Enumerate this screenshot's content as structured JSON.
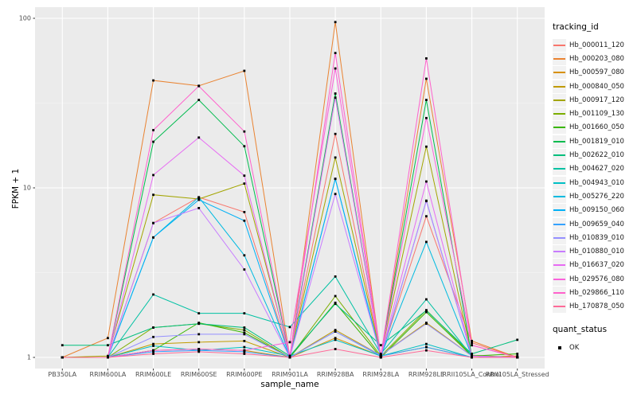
{
  "chart_data": {
    "type": "line",
    "title": "",
    "xlabel": "sample_name",
    "ylabel": "FPKM + 1",
    "x_scale": "discrete",
    "y_scale": "log10",
    "ylim": [
      1,
      100
    ],
    "y_ticks": [
      100,
      10,
      1
    ],
    "grid": "on",
    "legend_position": "right",
    "categories": [
      "PB350LA",
      "RRIM600LA",
      "RRIM600LE",
      "RRIM600SE",
      "RRIM600PE",
      "RRIM901LA",
      "RRIM928BA",
      "RRIM928LA",
      "RRIM928LE",
      "RRII105LA_Control",
      "RRII105LA_Stressed"
    ],
    "series": [
      {
        "name": "Hb_000011_120",
        "color": "#F8766D",
        "values": [
          1.0,
          1.0,
          6.2,
          8.8,
          7.2,
          1.02,
          20.8,
          1.02,
          6.8,
          1.22,
          1.0
        ]
      },
      {
        "name": "Hb_000203_080",
        "color": "#EA8331",
        "values": [
          1.0,
          1.3,
          43,
          40,
          49,
          1.0,
          95,
          1.0,
          44,
          1.25,
          1.0
        ]
      },
      {
        "name": "Hb_000597_080",
        "color": "#D89000",
        "values": [
          1.0,
          1.0,
          1.1,
          1.12,
          1.1,
          1.0,
          1.3,
          1.02,
          1.15,
          1.0,
          1.02
        ]
      },
      {
        "name": "Hb_000840_050",
        "color": "#C09B00",
        "values": [
          1.0,
          1.0,
          1.2,
          1.23,
          1.25,
          1.0,
          1.45,
          1.03,
          1.6,
          1.02,
          1.0
        ]
      },
      {
        "name": "Hb_000917_120",
        "color": "#A3A500",
        "values": [
          1.0,
          1.02,
          9.1,
          8.6,
          10.6,
          1.02,
          15.1,
          1.03,
          17.5,
          1.02,
          1.0
        ]
      },
      {
        "name": "Hb_001109_130",
        "color": "#7CAE00",
        "values": [
          1.0,
          1.0,
          1.5,
          1.58,
          1.45,
          1.0,
          2.3,
          1.02,
          1.9,
          1.03,
          1.0
        ]
      },
      {
        "name": "Hb_001660_050",
        "color": "#39B600",
        "values": [
          1.0,
          1.0,
          1.1,
          1.6,
          1.4,
          1.0,
          2.1,
          1.0,
          1.85,
          1.02,
          1.05
        ]
      },
      {
        "name": "Hb_001819_010",
        "color": "#00BB4E",
        "values": [
          1.0,
          1.0,
          18.7,
          33,
          17.6,
          1.02,
          36,
          1.02,
          33,
          1.02,
          1.0
        ]
      },
      {
        "name": "Hb_002622_010",
        "color": "#00BF7D",
        "values": [
          1.18,
          1.18,
          1.5,
          1.58,
          1.5,
          1.02,
          2.07,
          1.18,
          1.89,
          1.05,
          1.27
        ]
      },
      {
        "name": "Hb_004627_020",
        "color": "#00C1A3",
        "values": [
          1.0,
          1.0,
          2.35,
          1.82,
          1.82,
          1.51,
          3.0,
          1.05,
          2.2,
          1.02,
          1.0
        ]
      },
      {
        "name": "Hb_004943_010",
        "color": "#00BFC4",
        "values": [
          1.0,
          1.0,
          1.17,
          1.1,
          1.15,
          1.02,
          1.27,
          1.02,
          1.2,
          1.0,
          1.0
        ]
      },
      {
        "name": "Hb_005276_220",
        "color": "#00BAE0",
        "values": [
          1.0,
          1.0,
          5.1,
          8.8,
          4.0,
          1.0,
          11.3,
          1.02,
          4.8,
          1.02,
          1.0
        ]
      },
      {
        "name": "Hb_009150_060",
        "color": "#00B0F6",
        "values": [
          1.0,
          1.0,
          5.1,
          8.5,
          6.4,
          1.0,
          11.3,
          1.0,
          8.4,
          1.02,
          1.0
        ]
      },
      {
        "name": "Hb_009659_040",
        "color": "#35A2FF",
        "values": [
          1.0,
          1.0,
          1.08,
          1.1,
          1.08,
          1.0,
          1.42,
          1.02,
          1.15,
          1.0,
          1.0
        ]
      },
      {
        "name": "Hb_010839_010",
        "color": "#9590FF",
        "values": [
          1.0,
          1.0,
          1.32,
          1.37,
          1.37,
          1.0,
          1.42,
          1.03,
          1.58,
          1.02,
          1.0
        ]
      },
      {
        "name": "Hb_010880_010",
        "color": "#C77CFF",
        "values": [
          1.0,
          1.0,
          6.2,
          7.6,
          3.3,
          1.0,
          9.2,
          1.02,
          8.35,
          1.02,
          1.0
        ]
      },
      {
        "name": "Hb_016637_020",
        "color": "#E76BF3",
        "values": [
          1.0,
          1.0,
          11.9,
          19.8,
          11.8,
          1.0,
          34,
          1.02,
          10.9,
          1.02,
          1.0
        ]
      },
      {
        "name": "Hb_029576_080",
        "color": "#FA62DB",
        "values": [
          1.0,
          1.0,
          1.1,
          1.12,
          1.1,
          1.23,
          50.6,
          1.02,
          25.8,
          1.18,
          1.0
        ]
      },
      {
        "name": "Hb_029866_110",
        "color": "#FF61CC",
        "values": [
          1.0,
          1.0,
          21.9,
          39.8,
          21.5,
          1.02,
          62.4,
          1.02,
          58,
          1.18,
          1.0
        ]
      },
      {
        "name": "Hb_170878_050",
        "color": "#FF6A98",
        "values": [
          1.0,
          1.0,
          1.05,
          1.08,
          1.05,
          1.0,
          1.12,
          1.0,
          1.1,
          1.0,
          1.0
        ]
      }
    ],
    "legend": {
      "title": "tracking_id"
    },
    "legend2": {
      "title": "quant_status",
      "items": [
        {
          "label": "OK",
          "marker": "black-square"
        }
      ]
    }
  },
  "colors": {
    "panel_bg": "#EBEBEB",
    "grid_major": "#FFFFFF",
    "grid_minor": "#F7F7F7",
    "tick": "#333333",
    "axis_text": "#4D4D4D",
    "point": "#000000"
  }
}
